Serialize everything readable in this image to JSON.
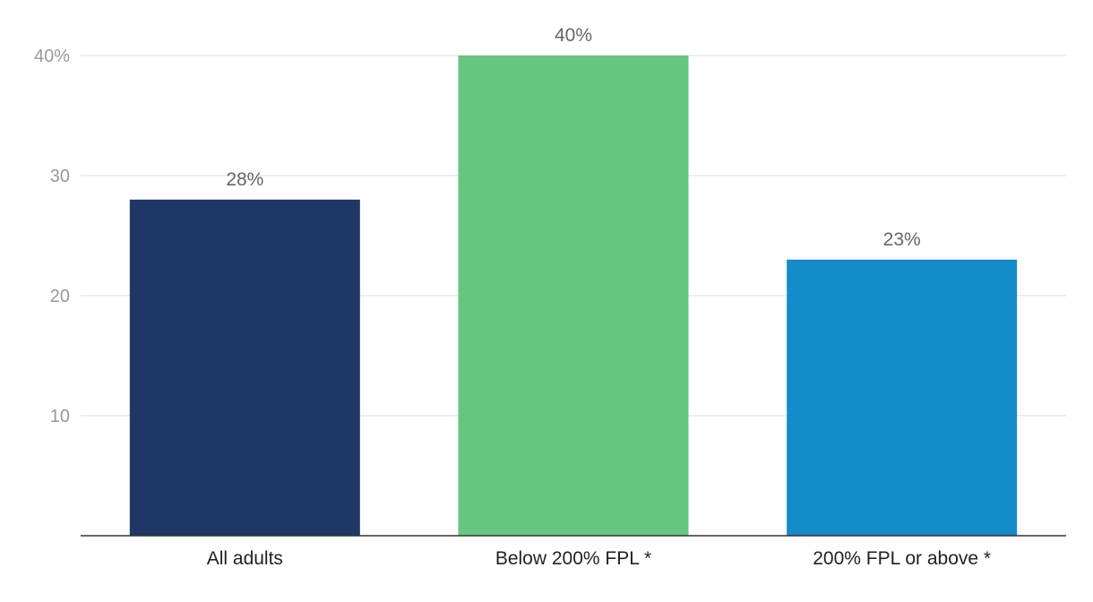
{
  "chart_data": {
    "type": "bar",
    "categories": [
      "All adults",
      "Below 200% FPL *",
      "200% FPL or above *"
    ],
    "values": [
      28,
      40,
      23
    ],
    "value_labels": [
      "28%",
      "40%",
      "23%"
    ],
    "bar_colors": [
      "#1f3764",
      "#66c680",
      "#168bca"
    ],
    "yticks": [
      10,
      20,
      30,
      40
    ],
    "ytick_labels": [
      "10",
      "20",
      "30",
      "40%"
    ],
    "ylim": [
      0,
      40
    ],
    "grid": true,
    "legend": "none"
  }
}
